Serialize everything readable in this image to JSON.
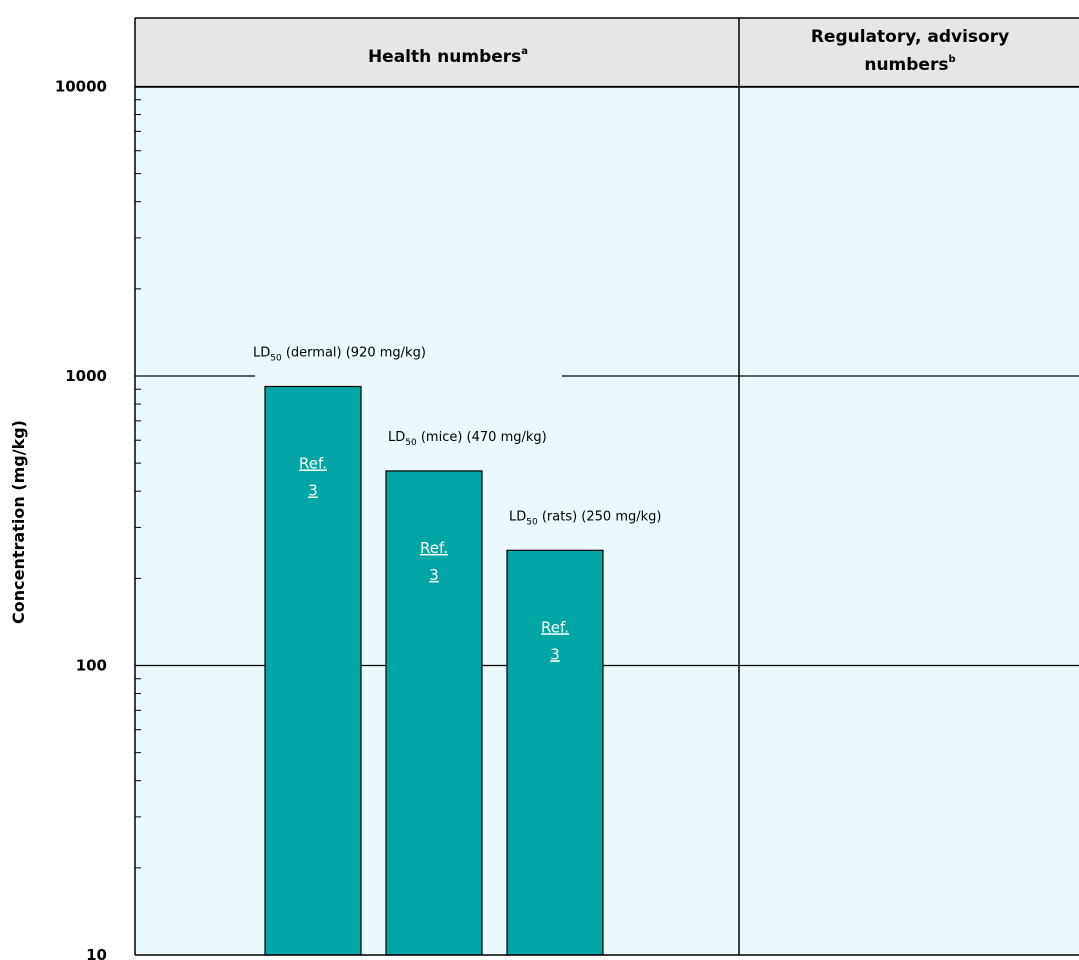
{
  "chart_data": {
    "type": "bar",
    "yscale": "log",
    "ylim": [
      10,
      16000
    ],
    "ylabel": "Concentration (mg/kg)",
    "yticks": [
      10,
      100,
      1000,
      10000
    ],
    "columns": [
      {
        "label": "Health numbers",
        "superscript": "a"
      },
      {
        "label_lines": [
          "Regulatory, advisory",
          "numbers"
        ],
        "superscript": "b"
      }
    ],
    "bars": [
      {
        "label_main": "LD",
        "label_sub": "50",
        "label_rest": " (dermal) (920 mg/kg)",
        "value": 920,
        "link_lines": [
          "Ref.",
          "3"
        ]
      },
      {
        "label_main": "LD",
        "label_sub": "50",
        "label_rest": " (mice) (470 mg/kg)",
        "value": 470,
        "link_lines": [
          "Ref.",
          "3"
        ]
      },
      {
        "label_main": "LD",
        "label_sub": "50",
        "label_rest": " (rats) (250 mg/kg)",
        "value": 250,
        "link_lines": [
          "Ref.",
          "3"
        ]
      }
    ],
    "colors": {
      "bar": "#00a6a6",
      "panel": "#eaf9fc",
      "header": "#e6e6e6"
    }
  }
}
